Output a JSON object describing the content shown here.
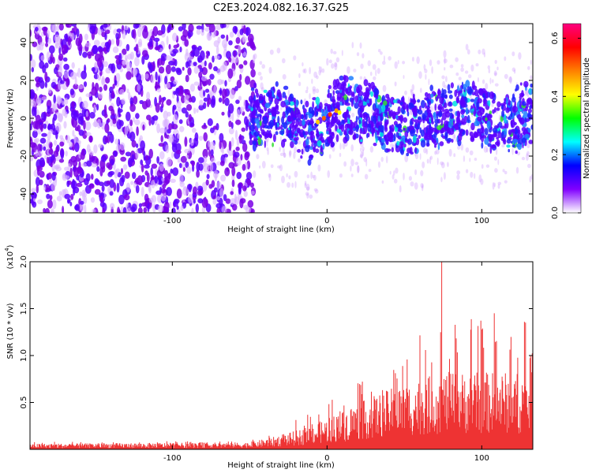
{
  "title": "C2E3.2024.082.16.37.G25",
  "chart_data": [
    {
      "type": "heatmap",
      "xlabel": "Height of straight line (km)",
      "ylabel": "Frequency (Hz)",
      "xlim": [
        -192,
        133
      ],
      "ylim": [
        -50,
        50
      ],
      "xticks": [
        -100,
        0,
        100
      ],
      "xtick_labels": [
        "-100",
        "0",
        "100"
      ],
      "yticks": [
        -40,
        -20,
        0,
        20,
        40
      ],
      "ytick_labels": [
        "-40",
        "-20",
        "0",
        "20",
        "40"
      ],
      "grid": false,
      "colorbar": {
        "label": "Normalized spectral amplitude",
        "range": [
          0.0,
          0.65
        ],
        "ticks": [
          0.0,
          0.2,
          0.4,
          0.6
        ],
        "tick_labels": [
          "0.0",
          "0.2",
          "0.4",
          "0.6"
        ],
        "colors": [
          "#ffffff",
          "#8000ff",
          "#0000ff",
          "#00ffff",
          "#00ff00",
          "#ffff00",
          "#ff8000",
          "#ff0000",
          "#ff0080"
        ]
      },
      "regions": [
        {
          "x_range": [
            -192,
            -47
          ],
          "freq_range": [
            -50,
            50
          ],
          "amplitude": 0.08,
          "description_color": "#7a00e6"
        },
        {
          "x_range": [
            -47,
            133
          ],
          "freq_range": [
            -15,
            15
          ],
          "amplitude": 0.12,
          "description_color": "#3300ff"
        }
      ],
      "ridge": {
        "x": [
          -50,
          -30,
          -10,
          0,
          10,
          30,
          50,
          70,
          90,
          110,
          133
        ],
        "freq": [
          0,
          2,
          -8,
          0,
          5,
          3,
          -5,
          0,
          5,
          -3,
          2
        ]
      }
    },
    {
      "type": "line",
      "xlabel": "Height of straight line (km)",
      "ylabel": "SNR (10 * v/v)",
      "y_multiplier": "(x10^4)",
      "y_multiplier_base": "(x10",
      "y_multiplier_exp": "4",
      "y_multiplier_close": ")",
      "xlim": [
        -192,
        133
      ],
      "ylim": [
        0,
        2.0
      ],
      "xticks": [
        -100,
        0,
        100
      ],
      "xtick_labels": [
        "-100",
        "0",
        "100"
      ],
      "yticks": [
        0.5,
        1.0,
        1.5,
        2.0
      ],
      "ytick_labels": [
        "0.5",
        "1.0",
        "1.5",
        "2.0"
      ],
      "grid": false,
      "series": [
        {
          "color": "#ee3333",
          "envelope_x": [
            -192,
            -50,
            -30,
            -15,
            0,
            15,
            30,
            45,
            60,
            75,
            90,
            105,
            120,
            133
          ],
          "envelope_max": [
            0.08,
            0.09,
            0.25,
            0.35,
            0.5,
            0.65,
            0.9,
            1.1,
            1.25,
            1.4,
            1.45,
            1.5,
            1.55,
            1.5
          ],
          "envelope_mean": [
            0.04,
            0.05,
            0.1,
            0.15,
            0.22,
            0.3,
            0.38,
            0.45,
            0.5,
            0.55,
            0.55,
            0.55,
            0.55,
            0.55
          ],
          "peak_x": 74,
          "peak_y": 2.0
        }
      ]
    }
  ]
}
